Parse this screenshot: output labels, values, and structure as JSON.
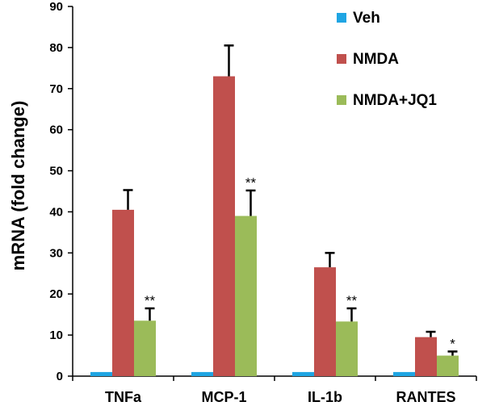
{
  "chart_data": {
    "type": "bar",
    "title": "",
    "xlabel": "",
    "ylabel": "mRNA (fold change)",
    "ylim": [
      0,
      90
    ],
    "yticks": [
      0,
      10,
      20,
      30,
      40,
      50,
      60,
      70,
      80,
      90
    ],
    "categories": [
      "TNFa",
      "MCP-1",
      "IL-1b",
      "RANTES"
    ],
    "series": [
      {
        "name": "Veh",
        "color": "#1FA5E3",
        "values": [
          1,
          1,
          1,
          1
        ],
        "errors": [
          0,
          0,
          0,
          0
        ]
      },
      {
        "name": "NMDA",
        "color": "#C0504D",
        "values": [
          40.5,
          73,
          26.5,
          9.5
        ],
        "errors": [
          4.8,
          7.5,
          3.5,
          1.3
        ]
      },
      {
        "name": "NMDA+JQ1",
        "color": "#9BBB59",
        "values": [
          13.5,
          39,
          13.3,
          5
        ],
        "errors": [
          3,
          6.2,
          3.2,
          1
        ]
      }
    ],
    "annotations": [
      {
        "category": "TNFa",
        "series": "NMDA+JQ1",
        "text": "**"
      },
      {
        "category": "MCP-1",
        "series": "NMDA+JQ1",
        "text": "**"
      },
      {
        "category": "IL-1b",
        "series": "NMDA+JQ1",
        "text": "**"
      },
      {
        "category": "RANTES",
        "series": "NMDA+JQ1",
        "text": "*"
      }
    ],
    "legend": {
      "position": "top-right"
    },
    "grid": false
  }
}
